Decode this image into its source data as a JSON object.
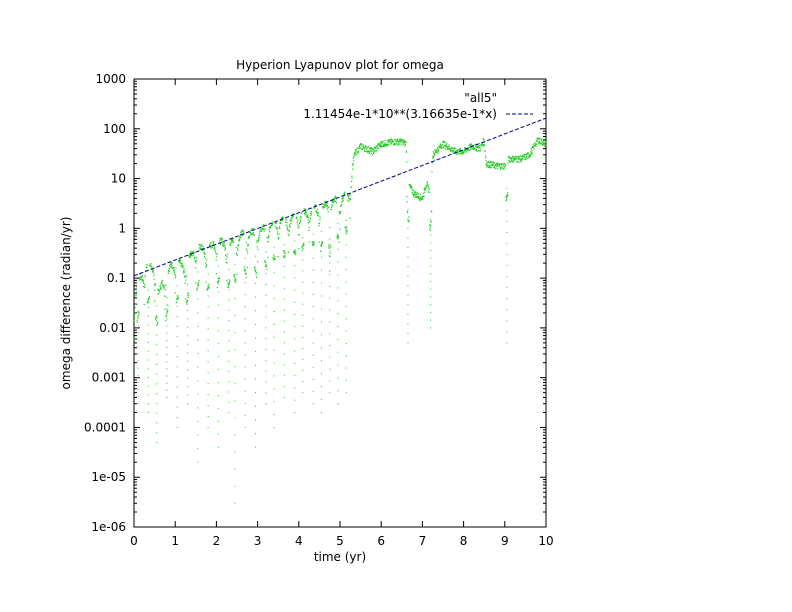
{
  "chart_data": {
    "type": "scatter",
    "title": "Hyperion Lyapunov plot for omega",
    "xlabel": "time (yr)",
    "ylabel": "omega difference (radian/yr)",
    "xlim": [
      0,
      10
    ],
    "ylim": [
      1e-06,
      1000
    ],
    "yscale": "log",
    "grid": false,
    "legend_position": "top-right",
    "x_ticks": [
      "0",
      "1",
      "2",
      "3",
      "4",
      "5",
      "6",
      "7",
      "8",
      "9",
      "10"
    ],
    "y_ticks": [
      "1e-06",
      "1e-05",
      "0.0001",
      "0.001",
      "0.01",
      "0.1",
      "1",
      "10",
      "100",
      "1000"
    ],
    "series": [
      {
        "name": "\"all5\"",
        "color": "#22cc22",
        "style": "points",
        "envelope": [
          [
            0.0,
            0.03
          ],
          [
            0.1,
            0.1
          ],
          [
            0.2,
            0.12
          ],
          [
            0.3,
            0.2
          ],
          [
            0.5,
            0.17
          ],
          [
            0.6,
            0.05
          ],
          [
            0.7,
            0.1
          ],
          [
            1.0,
            0.25
          ],
          [
            1.2,
            0.18
          ],
          [
            1.5,
            0.45
          ],
          [
            1.8,
            0.4
          ],
          [
            2.0,
            0.6
          ],
          [
            2.3,
            0.5
          ],
          [
            2.6,
            0.8
          ],
          [
            2.9,
            0.9
          ],
          [
            3.1,
            1.0
          ],
          [
            3.4,
            1.4
          ],
          [
            3.7,
            1.6
          ],
          [
            4.0,
            2.0
          ],
          [
            4.3,
            2.5
          ],
          [
            4.6,
            3.0
          ],
          [
            4.9,
            4.0
          ],
          [
            5.2,
            5.0
          ],
          [
            5.35,
            30.0
          ],
          [
            5.5,
            45.0
          ],
          [
            5.8,
            35.0
          ],
          [
            6.0,
            50.0
          ],
          [
            6.3,
            55.0
          ],
          [
            6.5,
            55.0
          ],
          [
            6.6,
            50.0
          ],
          [
            6.65,
            8.0
          ],
          [
            6.8,
            5.0
          ],
          [
            7.0,
            4.0
          ],
          [
            7.1,
            8.0
          ],
          [
            7.2,
            5.0
          ],
          [
            7.25,
            30.0
          ],
          [
            7.5,
            50.0
          ],
          [
            7.8,
            35.0
          ],
          [
            8.0,
            35.0
          ],
          [
            8.2,
            45.0
          ],
          [
            8.4,
            40.0
          ],
          [
            8.5,
            60.0
          ],
          [
            8.55,
            20.0
          ],
          [
            8.8,
            18.0
          ],
          [
            9.0,
            18.0
          ],
          [
            9.1,
            25.0
          ],
          [
            9.4,
            25.0
          ],
          [
            9.6,
            30.0
          ],
          [
            9.8,
            60.0
          ],
          [
            10.0,
            50.0
          ]
        ],
        "dips": [
          [
            0.1,
            0.0003
          ],
          [
            0.35,
            0.0002
          ],
          [
            0.55,
            5e-05
          ],
          [
            0.8,
            0.0004
          ],
          [
            1.05,
            0.0001
          ],
          [
            1.3,
            0.0003
          ],
          [
            1.55,
            2e-05
          ],
          [
            1.8,
            0.0001
          ],
          [
            2.05,
            4e-05
          ],
          [
            2.3,
            0.0002
          ],
          [
            2.45,
            3e-06
          ],
          [
            2.7,
            0.0001
          ],
          [
            2.95,
            4e-05
          ],
          [
            3.2,
            0.0003
          ],
          [
            3.4,
            0.0001
          ],
          [
            3.65,
            0.0004
          ],
          [
            3.9,
            0.0002
          ],
          [
            4.1,
            0.0005
          ],
          [
            4.35,
            0.0003
          ],
          [
            4.55,
            0.0002
          ],
          [
            4.75,
            0.0005
          ],
          [
            4.95,
            0.0003
          ],
          [
            5.15,
            0.0005
          ],
          [
            6.65,
            0.005
          ],
          [
            7.2,
            0.01
          ],
          [
            9.05,
            0.005
          ]
        ]
      },
      {
        "name": "1.11454e-1*10**(3.16635e-1*x)",
        "color": "#00008b",
        "style": "dashed",
        "a": 0.111454,
        "b": 0.316635
      }
    ]
  }
}
